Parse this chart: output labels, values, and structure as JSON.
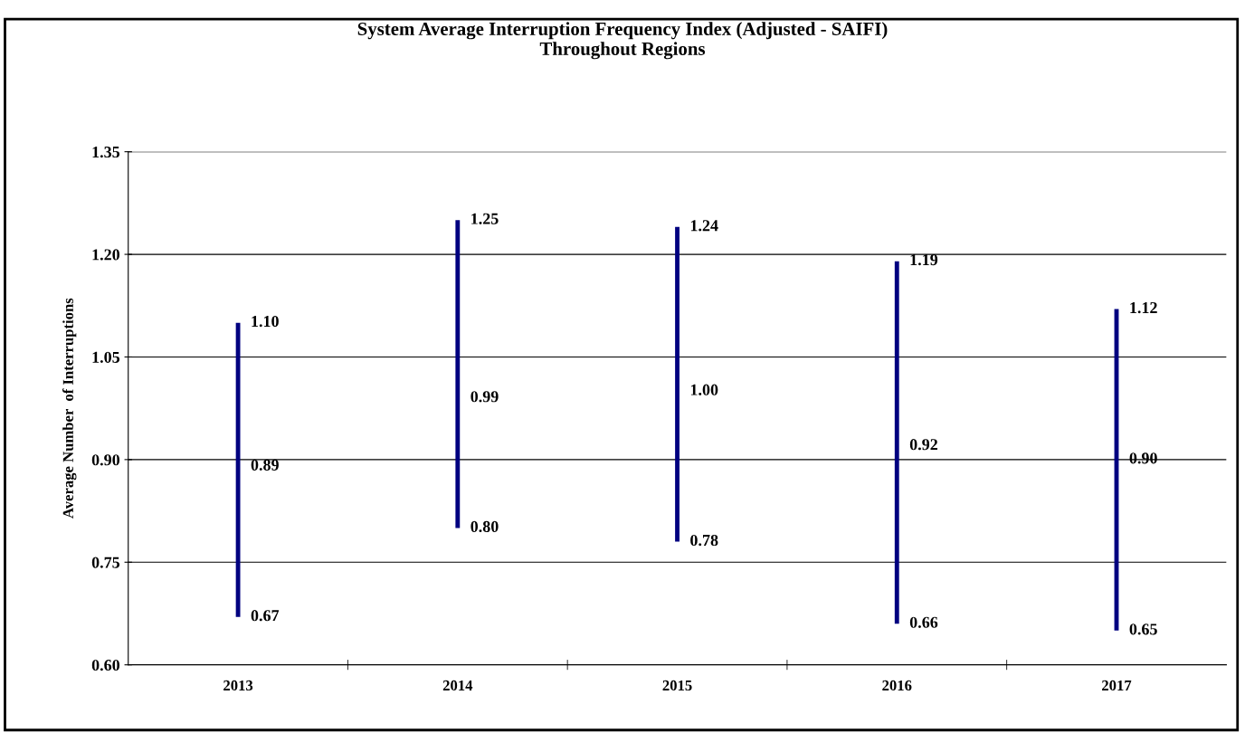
{
  "chart_data": {
    "type": "bar",
    "title": "System Average Interruption Frequency Index (Adjusted - SAIFI)\nThroughout Regions",
    "ylabel": "Average Number  of Interruptions",
    "categories": [
      "2013",
      "2014",
      "2015",
      "2016",
      "2017"
    ],
    "base": [
      0.67,
      0.8,
      0.78,
      0.66,
      0.65
    ],
    "values": [
      0.43,
      0.45,
      0.46,
      0.53,
      0.47
    ],
    "color": "#000080",
    "ylim": [
      0.6,
      1.35
    ],
    "yticks": [
      {
        "value": 0.6,
        "label": "0.60"
      },
      {
        "value": 0.75,
        "label": "0.75"
      },
      {
        "value": 0.9,
        "label": "0.90"
      },
      {
        "value": 1.05,
        "label": "1.05"
      },
      {
        "value": 1.2,
        "label": "1.20"
      },
      {
        "value": 1.35,
        "label": "1.35"
      }
    ],
    "grid": "y",
    "annotations": [
      {
        "text": "1.10",
        "x": "2013",
        "y": 1.1
      },
      {
        "text": "0.89",
        "x": "2013",
        "y": 0.89
      },
      {
        "text": "0.67",
        "x": "2013",
        "y": 0.67
      },
      {
        "text": "1.25",
        "x": "2014",
        "y": 1.25
      },
      {
        "text": "0.99",
        "x": "2014",
        "y": 0.99
      },
      {
        "text": "0.80",
        "x": "2014",
        "y": 0.8
      },
      {
        "text": "1.24",
        "x": "2015",
        "y": 1.24
      },
      {
        "text": "1.00",
        "x": "2015",
        "y": 1.0
      },
      {
        "text": "0.78",
        "x": "2015",
        "y": 0.78
      },
      {
        "text": "1.19",
        "x": "2016",
        "y": 1.19
      },
      {
        "text": "0.92",
        "x": "2016",
        "y": 0.92
      },
      {
        "text": "0.66",
        "x": "2016",
        "y": 0.66
      },
      {
        "text": "1.12",
        "x": "2017",
        "y": 1.12
      },
      {
        "text": "0.90",
        "x": "2017",
        "y": 0.9
      },
      {
        "text": "0.65",
        "x": "2017",
        "y": 0.65
      }
    ]
  }
}
